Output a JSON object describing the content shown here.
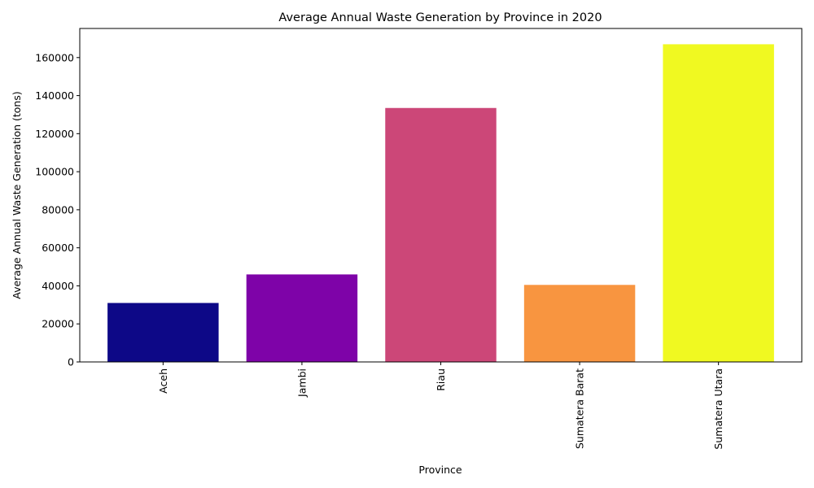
{
  "chart_data": {
    "type": "bar",
    "title": "Average Annual Waste Generation by Province in 2020",
    "xlabel": "Province",
    "ylabel": "Average Annual Waste Generation (tons)",
    "categories": [
      "Aceh",
      "Jambi",
      "Riau",
      "Sumatera Barat",
      "Sumatera Utara"
    ],
    "values": [
      31000,
      46000,
      133500,
      40500,
      167000
    ],
    "colors": [
      "#0d0887",
      "#7e03a8",
      "#cc4778",
      "#f89540",
      "#f0f921"
    ],
    "ylim": [
      0,
      175300
    ],
    "yticks": [
      0,
      20000,
      40000,
      60000,
      80000,
      100000,
      120000,
      140000,
      160000
    ],
    "ytick_labels": [
      "0",
      "20000",
      "40000",
      "60000",
      "80000",
      "100000",
      "120000",
      "140000",
      "160000"
    ],
    "grid": false,
    "legend": "none"
  }
}
